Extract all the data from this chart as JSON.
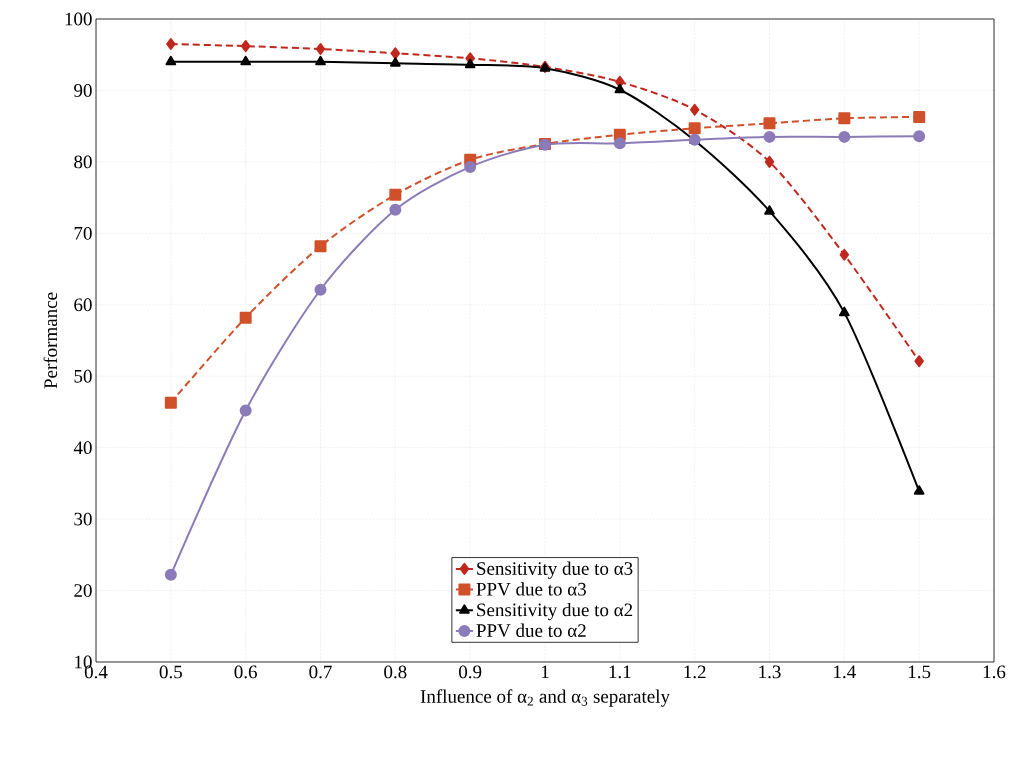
{
  "chart_data": {
    "type": "line",
    "xlabel": "Influence of α$_{2}$ and α$_{3}$ separately",
    "ylabel": "Performance",
    "x": [
      0.5,
      0.6,
      0.7,
      0.8,
      0.9,
      1.0,
      1.1,
      1.2,
      1.3,
      1.4,
      1.5
    ],
    "series": [
      {
        "name": "Sensitivity due to α3",
        "color": "#c0281e",
        "marker": "diamond",
        "line_style": "dashed",
        "values": [
          96.5,
          96.2,
          95.8,
          95.2,
          94.5,
          93.3,
          91.2,
          87.3,
          80.0,
          67.0,
          52.1
        ]
      },
      {
        "name": "PPV due to α3",
        "color": "#d0502a",
        "marker": "square",
        "line_style": "dashed",
        "values": [
          46.3,
          58.2,
          68.2,
          75.4,
          80.3,
          82.5,
          83.8,
          84.7,
          85.4,
          86.1,
          86.3
        ]
      },
      {
        "name": "Sensitivity due to α2",
        "color": "#000000",
        "marker": "triangle",
        "line_style": "solid",
        "values": [
          94.0,
          94.0,
          94.0,
          93.8,
          93.6,
          93.1,
          90.1,
          83.0,
          73.1,
          58.9,
          33.9
        ]
      },
      {
        "name": "PPV due to α2",
        "color": "#8b7bb8",
        "marker": "circle",
        "line_style": "solid",
        "values": [
          22.2,
          45.2,
          62.1,
          73.3,
          79.3,
          82.4,
          82.6,
          83.1,
          83.5,
          83.5,
          83.6
        ]
      }
    ],
    "xlim": [
      0.4,
      1.6
    ],
    "xticks": [
      0.4,
      0.5,
      0.6,
      0.7,
      0.8,
      0.9,
      1,
      1.1,
      1.2,
      1.3,
      1.4,
      1.5,
      1.6
    ],
    "ylim": [
      10,
      100
    ],
    "yticks": [
      10,
      20,
      30,
      40,
      50,
      60,
      70,
      80,
      90,
      100
    ],
    "grid": true,
    "legend": "bottom"
  }
}
